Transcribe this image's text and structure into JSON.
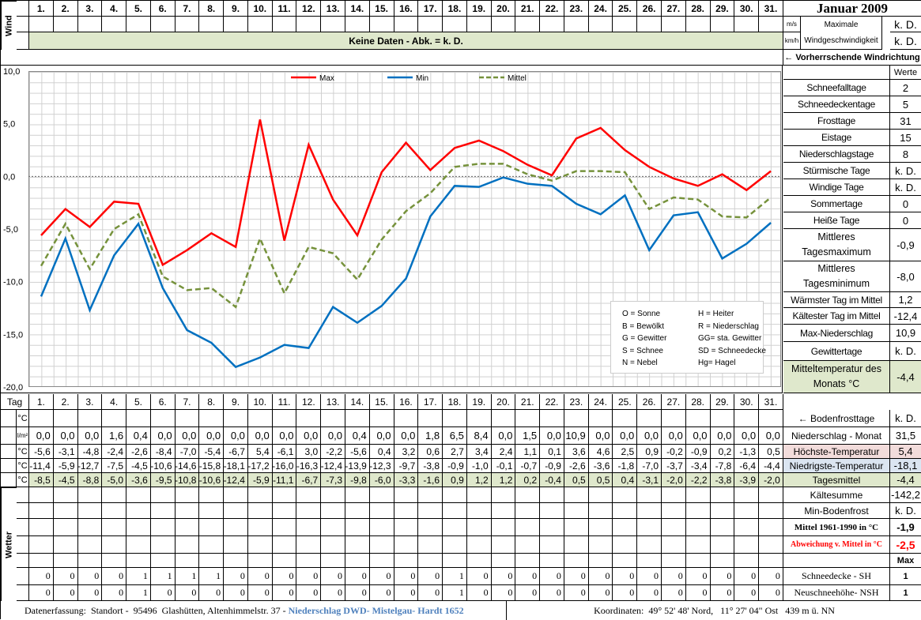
{
  "title": "Januar 2009",
  "days": [
    "1.",
    "2.",
    "3.",
    "4.",
    "5.",
    "6.",
    "7.",
    "8.",
    "9.",
    "10.",
    "11.",
    "12.",
    "13.",
    "14.",
    "15.",
    "16.",
    "17.",
    "18.",
    "19.",
    "20.",
    "21.",
    "22.",
    "23.",
    "24.",
    "25.",
    "26.",
    "27.",
    "28.",
    "29.",
    "30.",
    "31."
  ],
  "wind": {
    "label": "Wind",
    "no_data": "Keine Daten - Abk. = k. D.",
    "unit_ms": "m/s",
    "unit_kmh": "km/h",
    "max_label": "Maximale Windgeschwindigkeit",
    "max_ms": "k. D.",
    "max_kmh": "k. D.",
    "direction_label": "← Vorherrschende Windrichtung"
  },
  "stats": {
    "header": "Werte",
    "items": [
      {
        "label": "Schneefalltage",
        "value": "2"
      },
      {
        "label": "Schneedeckentage",
        "value": "5"
      },
      {
        "label": "Frosttage",
        "value": "31"
      },
      {
        "label": "Eistage",
        "value": "15"
      },
      {
        "label": "Niederschlagstage",
        "value": "8"
      },
      {
        "label": "Stürmische Tage",
        "value": "k. D."
      },
      {
        "label": "Windige Tage",
        "value": "k. D."
      },
      {
        "label": "Sommertage",
        "value": "0"
      },
      {
        "label": "Heiße Tage",
        "value": "0"
      },
      {
        "label": "Mittleres Tagesmaximum",
        "value": "-0,9"
      },
      {
        "label": "Mittleres Tagesminimum",
        "value": "-8,0"
      },
      {
        "label": "Wärmster Tag im Mittel",
        "value": "1,2"
      },
      {
        "label": "Kältester Tag im Mittel",
        "value": "-12,4"
      },
      {
        "label": "Max-Niederschlag",
        "value": "10,9"
      },
      {
        "label": "Gewittertage",
        "value": "k. D."
      },
      {
        "label": "Mitteltemperatur des Monats °C",
        "value": "-4,4"
      }
    ]
  },
  "chart_data": {
    "type": "line",
    "x": [
      1,
      2,
      3,
      4,
      5,
      6,
      7,
      8,
      9,
      10,
      11,
      12,
      13,
      14,
      15,
      16,
      17,
      18,
      19,
      20,
      21,
      22,
      23,
      24,
      25,
      26,
      27,
      28,
      29,
      30,
      31
    ],
    "ylim": [
      -20,
      10
    ],
    "yticks": [
      "10,0",
      "5,0",
      "0,0",
      "-5,0",
      "-10,0",
      "-15,0",
      "-20,0"
    ],
    "grid": true,
    "legend": "top",
    "series": [
      {
        "name": "Max",
        "color": "#ff0000",
        "values": [
          -5.6,
          -3.1,
          -4.8,
          -2.4,
          -2.6,
          -8.4,
          -7.0,
          -5.4,
          -6.7,
          5.4,
          -6.1,
          3.0,
          -2.2,
          -5.6,
          0.4,
          3.2,
          0.6,
          2.7,
          3.4,
          2.4,
          1.1,
          0.1,
          3.6,
          4.6,
          2.5,
          0.9,
          -0.2,
          -0.9,
          0.2,
          -1.3,
          0.5
        ]
      },
      {
        "name": "Min",
        "color": "#0070c0",
        "values": [
          -11.4,
          -5.9,
          -12.7,
          -7.5,
          -4.5,
          -10.6,
          -14.6,
          -15.8,
          -18.1,
          -17.2,
          -16.0,
          -16.3,
          -12.4,
          -13.9,
          -12.3,
          -9.7,
          -3.8,
          -0.9,
          -1.0,
          -0.1,
          -0.7,
          -0.9,
          -2.6,
          -3.6,
          -1.8,
          -7.0,
          -3.7,
          -3.4,
          -7.8,
          -6.4,
          -4.4
        ]
      },
      {
        "name": "Mittel",
        "color": "#76923c",
        "dashed": true,
        "values": [
          -8.5,
          -4.5,
          -8.8,
          -5.0,
          -3.6,
          -9.5,
          -10.8,
          -10.6,
          -12.4,
          -5.9,
          -11.1,
          -6.7,
          -7.3,
          -9.8,
          -6.0,
          -3.3,
          -1.6,
          0.9,
          1.2,
          1.2,
          0.2,
          -0.4,
          0.5,
          0.5,
          0.4,
          -3.1,
          -2.0,
          -2.2,
          -3.8,
          -3.9,
          -2.0
        ]
      }
    ]
  },
  "weather_legend": [
    [
      "O = Sonne",
      "H = Heiter"
    ],
    [
      "B = Bewölkt",
      "R = Niederschlag"
    ],
    [
      "G = Gewitter",
      "GG= sta. Gewitter"
    ],
    [
      "S = Schnee",
      "SD = Schneedecke"
    ],
    [
      "N = Nebel",
      "Hg= Hagel"
    ]
  ],
  "table": {
    "tag_label": "Tag",
    "unit_c": "°C",
    "unit_precip": "l/m²",
    "precip": [
      "0,0",
      "0,0",
      "0,0",
      "1,6",
      "0,4",
      "0,0",
      "0,0",
      "0,0",
      "0,0",
      "0,0",
      "0,0",
      "0,0",
      "0,0",
      "0,4",
      "0,0",
      "0,0",
      "1,8",
      "6,5",
      "8,4",
      "0,0",
      "1,5",
      "0,0",
      "10,9",
      "0,0",
      "0,0",
      "0,0",
      "0,0",
      "0,0",
      "0,0",
      "0,0",
      "0,0"
    ],
    "max": [
      "-5,6",
      "-3,1",
      "-4,8",
      "-2,4",
      "-2,6",
      "-8,4",
      "-7,0",
      "-5,4",
      "-6,7",
      "5,4",
      "-6,1",
      "3,0",
      "-2,2",
      "-5,6",
      "0,4",
      "3,2",
      "0,6",
      "2,7",
      "3,4",
      "2,4",
      "1,1",
      "0,1",
      "3,6",
      "4,6",
      "2,5",
      "0,9",
      "-0,2",
      "-0,9",
      "0,2",
      "-1,3",
      "0,5"
    ],
    "min": [
      "-11,4",
      "-5,9",
      "-12,7",
      "-7,5",
      "-4,5",
      "-10,6",
      "-14,6",
      "-15,8",
      "-18,1",
      "-17,2",
      "-16,0",
      "-16,3",
      "-12,4",
      "-13,9",
      "-12,3",
      "-9,7",
      "-3,8",
      "-0,9",
      "-1,0",
      "-0,1",
      "-0,7",
      "-0,9",
      "-2,6",
      "-3,6",
      "-1,8",
      "-7,0",
      "-3,7",
      "-3,4",
      "-7,8",
      "-6,4",
      "-4,4"
    ],
    "mean": [
      "-8,5",
      "-4,5",
      "-8,8",
      "-5,0",
      "-3,6",
      "-9,5",
      "-10,8",
      "-10,6",
      "-12,4",
      "-5,9",
      "-11,1",
      "-6,7",
      "-7,3",
      "-9,8",
      "-6,0",
      "-3,3",
      "-1,6",
      "0,9",
      "1,2",
      "1,2",
      "0,2",
      "-0,4",
      "0,5",
      "0,5",
      "0,4",
      "-3,1",
      "-2,0",
      "-2,2",
      "-3,8",
      "-3,9",
      "-2,0"
    ],
    "weather_label": "Wetter",
    "sh": [
      "0",
      "0",
      "0",
      "0",
      "1",
      "1",
      "1",
      "1",
      "0",
      "0",
      "0",
      "0",
      "0",
      "0",
      "0",
      "0",
      "0",
      "1",
      "0",
      "0",
      "0",
      "0",
      "0",
      "0",
      "0",
      "0",
      "0",
      "0",
      "0",
      "0",
      "0"
    ],
    "nsh": [
      "0",
      "0",
      "0",
      "0",
      "1",
      "0",
      "0",
      "0",
      "0",
      "0",
      "0",
      "0",
      "0",
      "0",
      "0",
      "0",
      "0",
      "1",
      "0",
      "0",
      "0",
      "0",
      "0",
      "0",
      "0",
      "0",
      "0",
      "0",
      "0",
      "0",
      "0"
    ]
  },
  "right_table": [
    {
      "label": "← Bodenfrosttage",
      "value": "k. D."
    },
    {
      "label": "Niederschlag - Monat",
      "value": "31,5"
    },
    {
      "label": "Höchste-Temperatur",
      "value": "5,4",
      "bg": "#f2dcdb"
    },
    {
      "label": "Niedrigste-Temperatur",
      "value": "-18,1",
      "bg": "#dbe5f1"
    },
    {
      "label": "Tagesmittel",
      "value": "-4,4",
      "bg": "#dfe8cc"
    },
    {
      "label": "Kältesumme",
      "value": "-142,2"
    },
    {
      "label": "Min-Bodenfrost",
      "value": "k. D."
    },
    {
      "label": "Mittel 1961-1990 in °C",
      "value": "-1,9"
    },
    {
      "label": "Abweichung v. Mittel in °C",
      "value": "-2,5",
      "color": "#ff0000"
    },
    {
      "label": "",
      "value": "Max"
    },
    {
      "label": "Schneedecke -  SH",
      "value": "1"
    },
    {
      "label": "Neuschneehöhe- NSH",
      "value": "1"
    }
  ],
  "footer": {
    "left": "Datenerfassung:  Standort -  95496  Glashütten, Altenhimmelstr. 37 - ",
    "left_link": "Niederschlag DWD- Mistelgau- Hardt 1652",
    "right": "Koordinaten:  49° 52' 48' Nord,   11° 27' 04\" Ost   439 m ü. NN"
  }
}
